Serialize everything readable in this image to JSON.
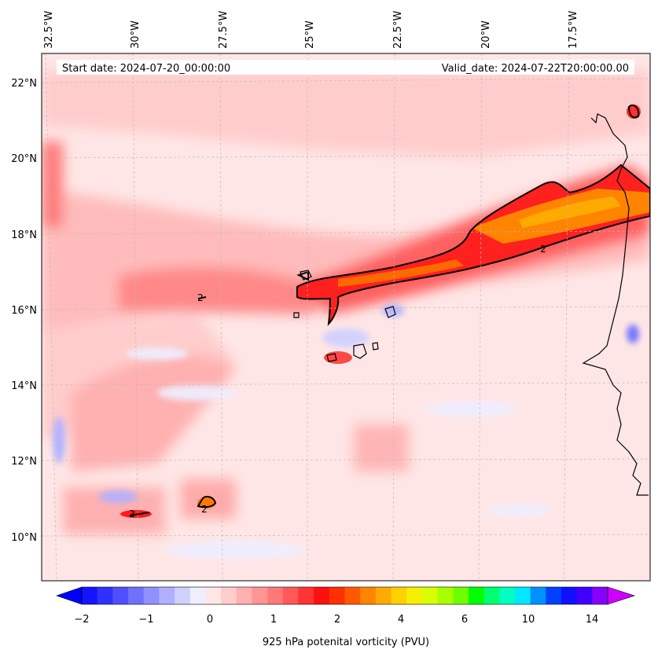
{
  "header": {
    "start_date": "Start date: 2024-07-20_00:00:00",
    "valid_date": "Valid_date: 2024-07-22T20:00:00.00"
  },
  "map": {
    "lon_labels": [
      "32.5°W",
      "30°W",
      "27.5°W",
      "25°W",
      "22.5°W",
      "20°W",
      "17.5°W"
    ],
    "lat_labels": [
      "22°N",
      "20°N",
      "18°N",
      "16°N",
      "14°N",
      "12°N",
      "10°N"
    ],
    "contour_label": "2",
    "colors": {
      "land_line": "#000000",
      "grid": "#bbbbbb",
      "background_pale": "#ffe6e6"
    }
  },
  "colorbar": {
    "title": "925 hPa potenital vorticity (PVU)",
    "ticks": [
      "−2",
      "−1",
      "0",
      "1",
      "2",
      "4",
      "6",
      "10",
      "14"
    ],
    "colors": [
      "#1414ff",
      "#3030ff",
      "#5050ff",
      "#7070ff",
      "#9090ff",
      "#b0b0ff",
      "#d0d0ff",
      "#eeeeff",
      "#ffe6e6",
      "#ffcccc",
      "#ffb0b0",
      "#ff9494",
      "#ff7878",
      "#ff5858",
      "#ff3434",
      "#ff1010",
      "#ff3000",
      "#ff5a00",
      "#ff8400",
      "#ffaa00",
      "#ffd000",
      "#f5f000",
      "#d8ff00",
      "#a8ff00",
      "#70ff00",
      "#00ff00",
      "#00ff70",
      "#00ffc0",
      "#00e8ff",
      "#0090ff",
      "#0040ff",
      "#1010ff",
      "#4000ff",
      "#8800ff"
    ],
    "min_color": "#0000ff",
    "max_color": "#cc00ff"
  }
}
